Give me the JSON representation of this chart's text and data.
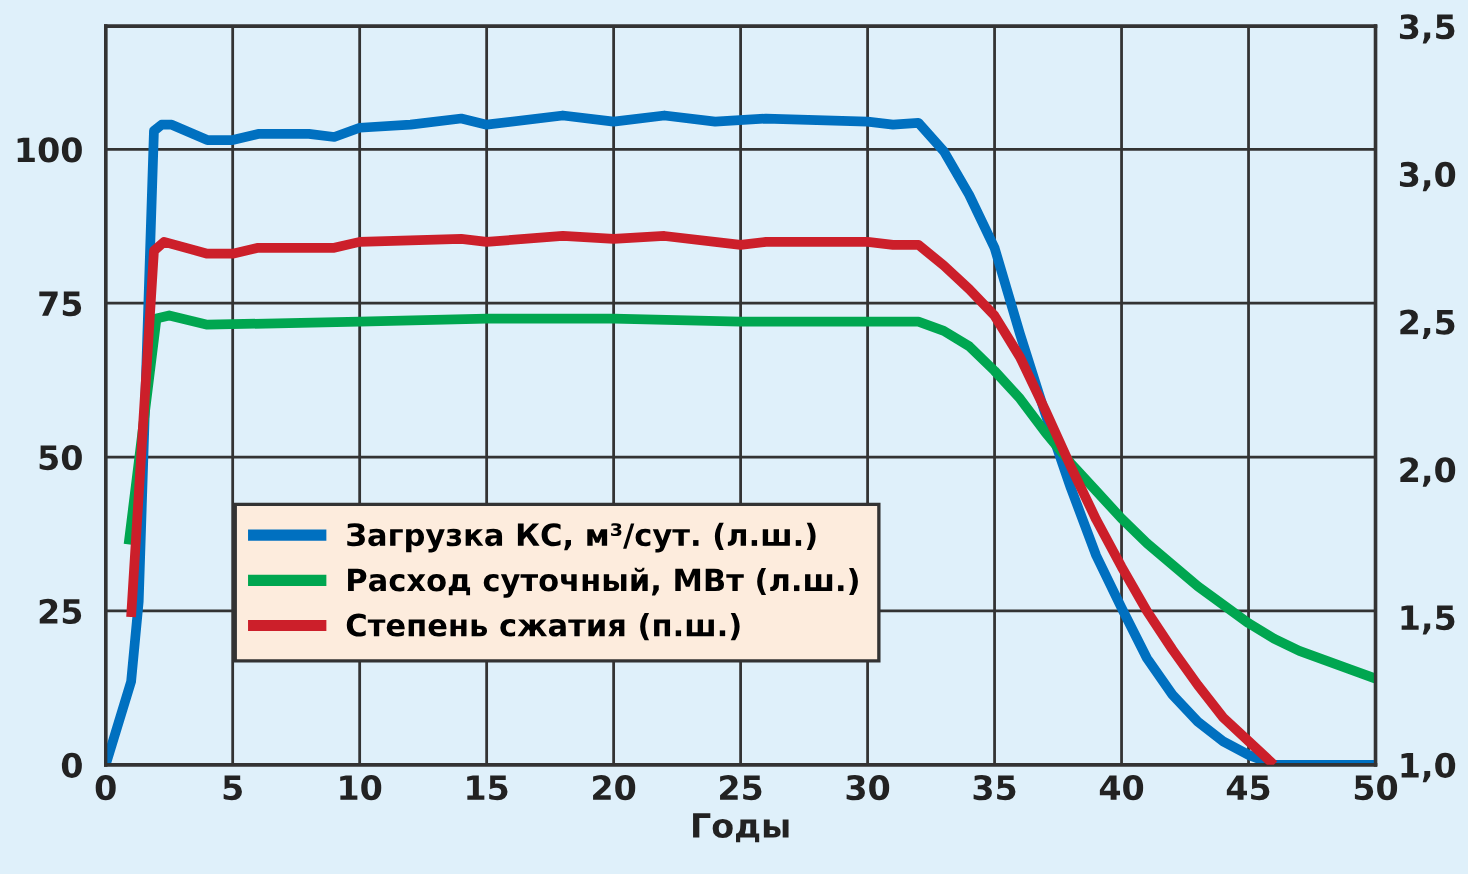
{
  "chart_data": {
    "type": "line",
    "xlabel": "Годы",
    "xlim": [
      0,
      50
    ],
    "xticks": [
      0,
      5,
      10,
      15,
      20,
      25,
      30,
      35,
      40,
      45,
      50
    ],
    "ylim": [
      0,
      120
    ],
    "yticks": [
      0,
      25,
      50,
      75,
      100
    ],
    "y2lim": [
      1.0,
      3.5
    ],
    "y2ticks": [
      {
        "value": 1.0,
        "label": "1,0"
      },
      {
        "value": 1.5,
        "label": "1,5"
      },
      {
        "value": 2.0,
        "label": "2,0"
      },
      {
        "value": 2.5,
        "label": "2,5"
      },
      {
        "value": 3.0,
        "label": "3,0"
      },
      {
        "value": 3.5,
        "label": "3,5"
      }
    ],
    "grid": true,
    "legend": "lower left",
    "line_style": "solid",
    "marker": "none",
    "series": [
      {
        "name": "Загрузка КС, м³/сут. (л.ш.)",
        "color": "#0070c0",
        "x": [
          0,
          1,
          1.3,
          1.9,
          2.2,
          2.6,
          4,
          5,
          6,
          8,
          9,
          10,
          12,
          14,
          15,
          18,
          20,
          22,
          24,
          26,
          30,
          31,
          32,
          33,
          34,
          35,
          36,
          37,
          38,
          39,
          40,
          41,
          42,
          43,
          44,
          45,
          46,
          50
        ],
        "values": [
          0,
          13.5,
          26.5,
          103,
          104,
          104,
          101.5,
          101.5,
          102.5,
          102.5,
          102,
          103.5,
          104,
          105,
          104,
          105.5,
          104.5,
          105.5,
          104.5,
          105,
          104.5,
          104,
          104.3,
          99.7,
          92.6,
          84,
          70,
          57,
          45,
          34,
          25.5,
          17.3,
          11.4,
          7,
          3.8,
          1.6,
          0,
          0
        ]
      },
      {
        "name": "Расход суточный, МВт (л.ш.)",
        "color": "#00a650",
        "x": [
          0.9,
          2,
          2.5,
          4,
          10,
          15,
          20,
          25,
          32,
          33,
          34,
          35,
          36,
          37,
          38,
          39,
          40,
          41,
          42,
          43,
          44,
          45,
          46,
          47,
          48,
          49,
          50
        ],
        "values": [
          35.8,
          72.5,
          73,
          71.5,
          72,
          72.5,
          72.5,
          72,
          72,
          70.5,
          68,
          64,
          59.5,
          54,
          49,
          44.5,
          40,
          36,
          32.5,
          29,
          26,
          23,
          20.5,
          18.5,
          17,
          15.5,
          14
        ]
      },
      {
        "name": "Степень сжатия (п.ш.)",
        "color": "#cc1f2a",
        "axis": "y2",
        "x": [
          1,
          1.9,
          2.3,
          4,
          5,
          6,
          9,
          10,
          14,
          15,
          18,
          20,
          22,
          25,
          26,
          30,
          31,
          32,
          33,
          34,
          35,
          36,
          37,
          38,
          39,
          40,
          41,
          42,
          43,
          44,
          45,
          46
        ],
        "values": [
          1.5,
          2.74,
          2.77,
          2.73,
          2.73,
          2.75,
          2.75,
          2.77,
          2.78,
          2.77,
          2.79,
          2.78,
          2.79,
          2.76,
          2.77,
          2.77,
          2.76,
          2.76,
          2.69,
          2.61,
          2.52,
          2.38,
          2.2,
          2.01,
          1.83,
          1.67,
          1.52,
          1.39,
          1.27,
          1.16,
          1.08,
          1.0
        ]
      }
    ]
  }
}
